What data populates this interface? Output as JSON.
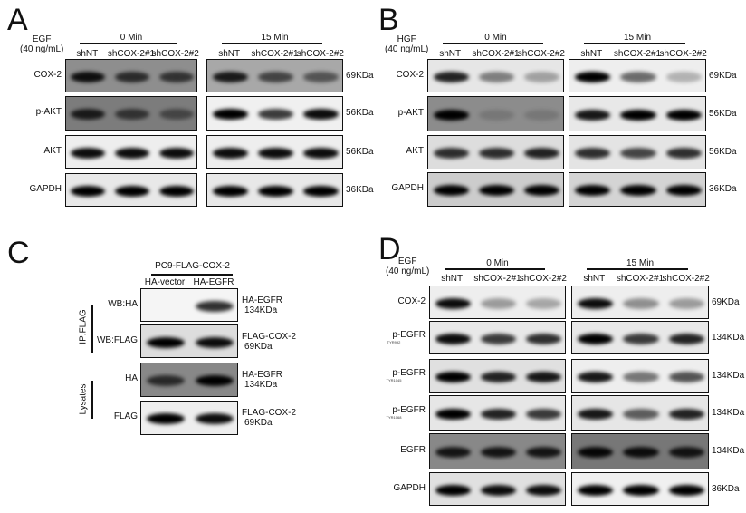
{
  "panels": [
    {
      "letter": "A",
      "treatment": [
        "EGF",
        "(40 ng/mL)"
      ],
      "groups": [
        "0 Min",
        "15 Min"
      ],
      "lanes": [
        "shNT",
        "shCOX-2#1",
        "shCOX-2#2"
      ],
      "rows": [
        {
          "label": "COX-2",
          "kda": "69KDa",
          "bg": [
            "#8e8e8e",
            "#a8a8a8"
          ],
          "bands": [
            [
              0.9,
              0.7,
              0.65
            ],
            [
              0.85,
              0.6,
              0.5
            ]
          ]
        },
        {
          "label": "p-AKT",
          "kda": "56KDa",
          "bg": [
            "#7c7c7c",
            "#f0f0f0"
          ],
          "bands": [
            [
              0.8,
              0.6,
              0.45
            ],
            [
              1,
              0.75,
              0.95
            ]
          ]
        },
        {
          "label": "AKT",
          "kda": "56KDa",
          "bg": [
            "#eeeeee",
            "#eeeeee"
          ],
          "bands": [
            [
              0.95,
              0.95,
              0.95
            ],
            [
              0.95,
              0.95,
              0.95
            ]
          ]
        },
        {
          "label": "GAPDH",
          "kda": "36KDa",
          "bg": [
            "#e8e8e8",
            "#e8e8e8"
          ],
          "bands": [
            [
              1,
              1,
              1
            ],
            [
              1,
              1,
              1
            ]
          ]
        }
      ]
    },
    {
      "letter": "B",
      "treatment": [
        "HGF",
        "(40 ng/mL)"
      ],
      "groups": [
        "0 Min",
        "15 Min"
      ],
      "lanes": [
        "shNT",
        "shCOX-2#1",
        "shCOX-2#2"
      ],
      "rows": [
        {
          "label": "COX-2",
          "kda": "69KDa",
          "bg": [
            "#e6e6e6",
            "#eeeeee"
          ],
          "bands": [
            [
              0.85,
              0.45,
              0.3
            ],
            [
              1,
              0.55,
              0.25
            ]
          ]
        },
        {
          "label": "p-AKT",
          "kda": "56KDa",
          "bg": [
            "#8c8c8c",
            "#e8e8e8"
          ],
          "bands": [
            [
              1,
              0.15,
              0.15
            ],
            [
              0.9,
              1,
              1
            ]
          ]
        },
        {
          "label": "AKT",
          "kda": "56KDa",
          "bg": [
            "#dddddd",
            "#e4e4e4"
          ],
          "bands": [
            [
              0.8,
              0.8,
              0.85
            ],
            [
              0.8,
              0.7,
              0.8
            ]
          ]
        },
        {
          "label": "GAPDH",
          "kda": "36KDa",
          "bg": [
            "#cccccc",
            "#d4d4d4"
          ],
          "bands": [
            [
              1,
              1,
              1
            ],
            [
              1,
              1,
              1
            ]
          ]
        }
      ]
    },
    {
      "letter": "C",
      "header": "PC9-FLAG-COX-2",
      "lanes": [
        "HA-vector",
        "HA-EGFR"
      ],
      "side_groups": [
        "IP:FLAG",
        "Lysates"
      ],
      "rows": [
        {
          "label": "WB:HA",
          "kda": [
            "HA-EGFR",
            "134KDa"
          ],
          "bg": [
            "#f5f5f5"
          ],
          "bands": [
            [
              0,
              0.8
            ]
          ]
        },
        {
          "label": "WB:FLAG",
          "kda": [
            "FLAG-COX-2",
            "69KDa"
          ],
          "bg": [
            "#dddddd"
          ],
          "bands": [
            [
              1,
              0.95
            ]
          ]
        },
        {
          "label": "HA",
          "kda": [
            "HA-EGFR",
            "134KDa"
          ],
          "bg": [
            "#888888"
          ],
          "bands": [
            [
              0.7,
              1
            ]
          ]
        },
        {
          "label": "FLAG",
          "kda": [
            "FLAG-COX-2",
            "69KDa"
          ],
          "bg": [
            "#eeeeee"
          ],
          "bands": [
            [
              1,
              0.95
            ]
          ]
        }
      ]
    },
    {
      "letter": "D",
      "treatment": [
        "EGF",
        "(40 ng/mL)"
      ],
      "groups": [
        "0 Min",
        "15 Min"
      ],
      "lanes": [
        "shNT",
        "shCOX-2#1",
        "shCOX-2#2"
      ],
      "rows": [
        {
          "label": "COX-2",
          "kda": "69KDa",
          "bg": [
            "#eeeeee",
            "#eeeeee"
          ],
          "bands": [
            [
              0.95,
              0.35,
              0.3
            ],
            [
              0.95,
              0.4,
              0.35
            ]
          ]
        },
        {
          "label": "p-EGFR",
          "sub": "TYR992",
          "kda": "134KDa",
          "bg": [
            "#e8e8e8",
            "#e8e8e8"
          ],
          "bands": [
            [
              0.95,
              0.75,
              0.8
            ],
            [
              1,
              0.75,
              0.85
            ]
          ]
        },
        {
          "label": "p-EGFR",
          "sub": "TYR1045",
          "kda": "134KDa",
          "bg": [
            "#e0e0e0",
            "#eeeeee"
          ],
          "bands": [
            [
              1,
              0.85,
              0.9
            ],
            [
              0.9,
              0.5,
              0.65
            ]
          ]
        },
        {
          "label": "p-EGFR",
          "sub": "TYR1068",
          "kda": "134KDa",
          "bg": [
            "#e6e6e6",
            "#e6e6e6"
          ],
          "bands": [
            [
              1,
              0.85,
              0.75
            ],
            [
              0.9,
              0.6,
              0.85
            ]
          ]
        },
        {
          "label": "EGFR",
          "kda": "134KDa",
          "bg": [
            "#888888",
            "#777777"
          ],
          "bands": [
            [
              0.85,
              0.85,
              0.85
            ],
            [
              0.95,
              0.9,
              0.85
            ]
          ]
        },
        {
          "label": "GAPDH",
          "kda": "36KDa",
          "bg": [
            "#e0e0e0",
            "#f0f0f0"
          ],
          "bands": [
            [
              1,
              0.95,
              0.95
            ],
            [
              1,
              1,
              1
            ]
          ]
        }
      ]
    }
  ]
}
